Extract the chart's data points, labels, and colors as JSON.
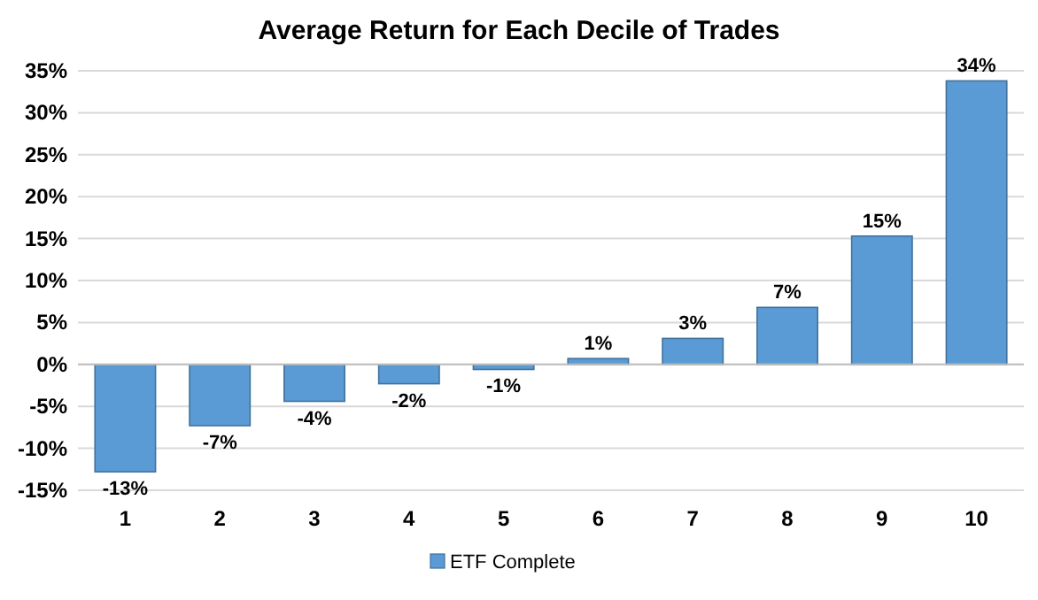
{
  "chart_data": {
    "type": "bar",
    "title": "Average Return for Each Decile of Trades",
    "categories": [
      "1",
      "2",
      "3",
      "4",
      "5",
      "6",
      "7",
      "8",
      "9",
      "10"
    ],
    "series": [
      {
        "name": "ETF Complete",
        "color": "#5b9bd5",
        "values": [
          -12.8,
          -7.3,
          -4.4,
          -2.3,
          -0.6,
          0.7,
          3.1,
          6.8,
          15.3,
          33.8
        ],
        "value_labels": [
          "-13%",
          "-7%",
          "-4%",
          "-2%",
          "-1%",
          "1%",
          "3%",
          "7%",
          "15%",
          "34%"
        ]
      }
    ],
    "ylim": [
      -15,
      35
    ],
    "yticks": [
      {
        "value": -15,
        "label": "-15%"
      },
      {
        "value": -10,
        "label": "-10%"
      },
      {
        "value": -5,
        "label": "-5%"
      },
      {
        "value": 0,
        "label": "0%"
      },
      {
        "value": 5,
        "label": "5%"
      },
      {
        "value": 10,
        "label": "10%"
      },
      {
        "value": 15,
        "label": "15%"
      },
      {
        "value": 20,
        "label": "20%"
      },
      {
        "value": 25,
        "label": "25%"
      },
      {
        "value": 30,
        "label": "30%"
      },
      {
        "value": 35,
        "label": "35%"
      }
    ],
    "grid": "y",
    "legend": "bottom"
  }
}
